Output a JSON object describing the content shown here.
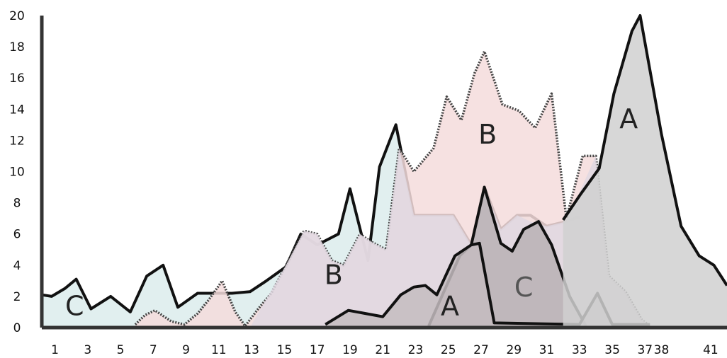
{
  "chart_data": {
    "type": "area",
    "title": "",
    "xlabel": "",
    "ylabel": "",
    "ylim": [
      0,
      20
    ],
    "xlim": [
      0.2,
      42
    ],
    "grid": false,
    "legend": "none",
    "y_ticks": [
      "0",
      "2",
      "4",
      "6",
      "8",
      "10",
      "12",
      "14",
      "16",
      "18",
      "20"
    ],
    "x_ticks": [
      {
        "value": 1,
        "label": "1"
      },
      {
        "value": 3,
        "label": "3"
      },
      {
        "value": 5,
        "label": "5"
      },
      {
        "value": 7,
        "label": "7"
      },
      {
        "value": 9,
        "label": "9"
      },
      {
        "value": 11,
        "label": "11"
      },
      {
        "value": 13,
        "label": "13"
      },
      {
        "value": 15,
        "label": "15"
      },
      {
        "value": 17,
        "label": "17"
      },
      {
        "value": 19,
        "label": "19"
      },
      {
        "value": 21,
        "label": "21"
      },
      {
        "value": 23,
        "label": "23"
      },
      {
        "value": 25,
        "label": "25"
      },
      {
        "value": 27,
        "label": "27"
      },
      {
        "value": 29,
        "label": "29"
      },
      {
        "value": 31,
        "label": "31"
      },
      {
        "value": 33,
        "label": "33"
      },
      {
        "value": 35,
        "label": "35"
      },
      {
        "value": 37,
        "label": "37"
      },
      {
        "value": 38,
        "label": "38"
      },
      {
        "value": 41,
        "label": "41"
      }
    ],
    "series": [
      {
        "label": "C",
        "fill": "#dcecec",
        "stroke": "#111111",
        "dash": "solid",
        "label_pos": {
          "x": 2.2,
          "y": 0.8
        },
        "label_color": "#222222",
        "points": [
          [
            0.2,
            2.1
          ],
          [
            0.8,
            2.0
          ],
          [
            1.6,
            2.5
          ],
          [
            2.3,
            3.1
          ],
          [
            3.2,
            1.2
          ],
          [
            4.4,
            2.0
          ],
          [
            5.6,
            1.0
          ],
          [
            6.6,
            3.3
          ],
          [
            7.6,
            4.0
          ],
          [
            8.5,
            1.3
          ],
          [
            9.7,
            2.2
          ],
          [
            10.8,
            2.2
          ],
          [
            11.8,
            2.2
          ],
          [
            12.9,
            2.3
          ],
          [
            13.9,
            3.0
          ],
          [
            15.1,
            3.9
          ],
          [
            16.0,
            6.0
          ],
          [
            17.0,
            5.3
          ],
          [
            18.3,
            6.0
          ],
          [
            19.0,
            8.9
          ],
          [
            20.1,
            4.3
          ],
          [
            20.8,
            10.3
          ],
          [
            21.8,
            13.0
          ],
          [
            22.9,
            7.2
          ],
          [
            24.1,
            7.2
          ],
          [
            25.3,
            7.2
          ],
          [
            26.4,
            5.3
          ],
          [
            27.2,
            9.0
          ],
          [
            28.2,
            6.3
          ],
          [
            29.2,
            7.2
          ],
          [
            30.0,
            7.2
          ],
          [
            31.0,
            6.5
          ],
          [
            32.2,
            6.8
          ],
          [
            33.0,
            7.1
          ]
        ]
      },
      {
        "label": "B",
        "fill": "#f4dcdc",
        "stroke": "#444444",
        "dash": "dotted",
        "label_pos": {
          "x": 27.4,
          "y": 11.8
        },
        "label_color": "#222222",
        "points": [
          [
            5.9,
            0.2
          ],
          [
            6.5,
            0.8
          ],
          [
            7.1,
            1.1
          ],
          [
            8.1,
            0.4
          ],
          [
            8.9,
            0.2
          ],
          [
            9.7,
            0.9
          ],
          [
            10.4,
            1.8
          ],
          [
            11.2,
            3.0
          ],
          [
            12.0,
            1.0
          ],
          [
            12.6,
            0.1
          ],
          [
            13.4,
            1.2
          ],
          [
            14.2,
            2.2
          ],
          [
            15.1,
            4.0
          ],
          [
            16.2,
            6.2
          ],
          [
            17.0,
            6.0
          ],
          [
            17.9,
            4.3
          ],
          [
            18.6,
            4.0
          ],
          [
            19.6,
            6.0
          ],
          [
            20.3,
            5.5
          ],
          [
            21.2,
            5.0
          ],
          [
            22.0,
            11.5
          ],
          [
            22.9,
            10.0
          ],
          [
            24.1,
            11.5
          ],
          [
            24.9,
            14.8
          ],
          [
            25.8,
            13.3
          ],
          [
            26.6,
            16.3
          ],
          [
            27.2,
            17.7
          ],
          [
            28.3,
            14.3
          ],
          [
            29.3,
            13.9
          ],
          [
            30.3,
            12.8
          ],
          [
            31.3,
            15.0
          ],
          [
            32.2,
            7.0
          ],
          [
            33.2,
            11.0
          ],
          [
            34.0,
            11.0
          ],
          [
            34.8,
            3.3
          ],
          [
            35.8,
            2.3
          ],
          [
            36.8,
            0.5
          ],
          [
            37.3,
            0.1
          ]
        ]
      },
      {
        "label": "B",
        "fill": "#e0d8e2",
        "stroke": "none",
        "dash": "solid",
        "label_pos": {
          "x": 18.0,
          "y": 2.8
        },
        "label_color": "#222222",
        "points": [
          [
            13.0,
            0.2
          ],
          [
            15.1,
            4.0
          ],
          [
            16.2,
            6.2
          ],
          [
            17.0,
            6.0
          ],
          [
            17.9,
            4.3
          ],
          [
            18.6,
            4.0
          ],
          [
            19.6,
            6.0
          ],
          [
            20.3,
            5.5
          ],
          [
            21.2,
            5.0
          ],
          [
            22.0,
            11.5
          ],
          [
            22.9,
            7.2
          ],
          [
            25.3,
            7.2
          ],
          [
            26.4,
            5.3
          ],
          [
            27.2,
            9.0
          ],
          [
            28.2,
            6.3
          ],
          [
            29.2,
            7.2
          ],
          [
            30.0,
            6.8
          ],
          [
            31.0,
            6.5
          ],
          [
            32.2,
            6.8
          ],
          [
            34.0,
            11.0
          ],
          [
            34.8,
            3.3
          ],
          [
            35.8,
            2.3
          ],
          [
            36.8,
            0.5
          ],
          [
            37.3,
            0.1
          ]
        ]
      },
      {
        "label": "C",
        "fill": "#b8b0b4",
        "stroke": "#111111",
        "dash": "solid",
        "label_pos": {
          "x": 29.6,
          "y": 2.0
        },
        "label_color": "#555555",
        "points": [
          [
            23.8,
            0.1
          ],
          [
            24.6,
            2.0
          ],
          [
            25.7,
            4.6
          ],
          [
            26.4,
            5.3
          ],
          [
            27.2,
            9.0
          ],
          [
            28.2,
            5.4
          ],
          [
            28.9,
            4.9
          ],
          [
            29.6,
            6.3
          ],
          [
            30.5,
            6.8
          ],
          [
            31.3,
            5.3
          ],
          [
            32.4,
            2.0
          ],
          [
            33.4,
            0.1
          ]
        ]
      },
      {
        "label": "A",
        "fill": "#c4bcc0",
        "stroke": "#111111",
        "dash": "solid",
        "label_pos": {
          "x": 25.1,
          "y": 0.8
        },
        "label_color": "#222222",
        "points": [
          [
            17.5,
            0.2
          ],
          [
            18.9,
            1.1
          ],
          [
            21.0,
            0.7
          ],
          [
            22.1,
            2.1
          ],
          [
            22.9,
            2.6
          ],
          [
            23.6,
            2.7
          ],
          [
            24.3,
            2.1
          ],
          [
            25.4,
            4.6
          ],
          [
            26.4,
            5.3
          ],
          [
            26.9,
            5.4
          ],
          [
            27.8,
            0.3
          ],
          [
            33.0,
            0.2
          ],
          [
            34.1,
            2.2
          ],
          [
            35.0,
            0.2
          ],
          [
            37.3,
            0.2
          ]
        ]
      },
      {
        "label": "A",
        "fill": "#d0d0d0",
        "stroke": "#111111",
        "dash": "solid",
        "label_pos": {
          "x": 36.0,
          "y": 12.8
        },
        "label_color": "#222222",
        "points": [
          [
            32.0,
            6.9
          ],
          [
            33.1,
            8.6
          ],
          [
            34.2,
            10.2
          ],
          [
            35.1,
            15.0
          ],
          [
            36.2,
            19.0
          ],
          [
            36.7,
            20.0
          ],
          [
            38.0,
            12.4
          ],
          [
            39.2,
            6.5
          ],
          [
            40.3,
            4.6
          ],
          [
            41.2,
            4.0
          ],
          [
            42.0,
            2.7
          ]
        ]
      }
    ]
  }
}
